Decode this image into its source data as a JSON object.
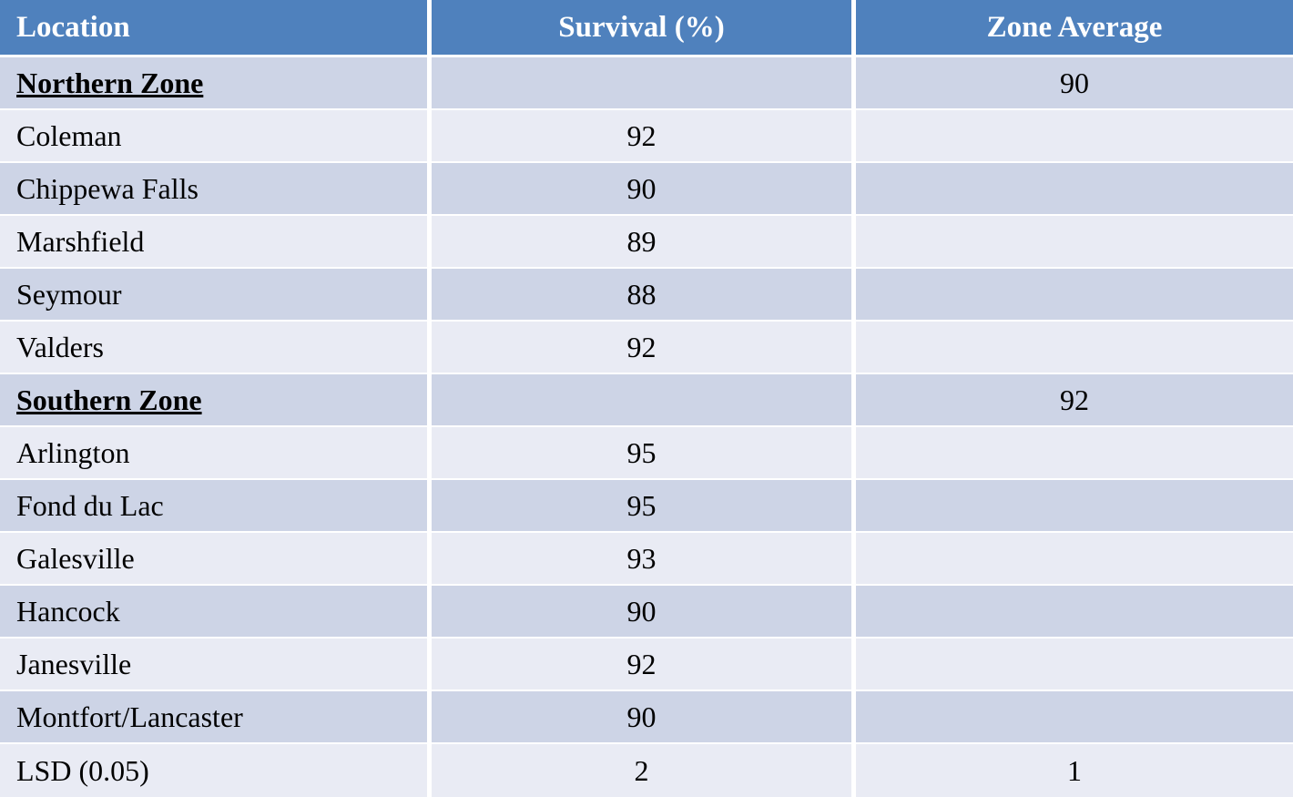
{
  "chart_data": {
    "type": "table",
    "title": "",
    "columns": [
      "Location",
      "Survival (%)",
      "Zone Average"
    ],
    "rows": [
      [
        "Northern Zone",
        "",
        "90"
      ],
      [
        "Coleman",
        "92",
        ""
      ],
      [
        "Chippewa Falls",
        "90",
        ""
      ],
      [
        "Marshfield",
        "89",
        ""
      ],
      [
        "Seymour",
        "88",
        ""
      ],
      [
        "Valders",
        "92",
        ""
      ],
      [
        "Southern Zone",
        "",
        "92"
      ],
      [
        "Arlington",
        "95",
        ""
      ],
      [
        "Fond du Lac",
        "95",
        ""
      ],
      [
        "Galesville",
        "93",
        ""
      ],
      [
        "Hancock",
        "90",
        ""
      ],
      [
        "Janesville",
        "92",
        ""
      ],
      [
        "Montfort/Lancaster",
        "90",
        ""
      ],
      [
        "LSD (0.05)",
        "2",
        "1"
      ]
    ],
    "zone_header_rows": [
      0,
      6
    ]
  },
  "colors": {
    "header_bg": "#4F81BD",
    "header_text": "#FFFFFF",
    "row_dark": "#CDD4E6",
    "row_light": "#E9EBF4",
    "body_text": "#000000"
  }
}
